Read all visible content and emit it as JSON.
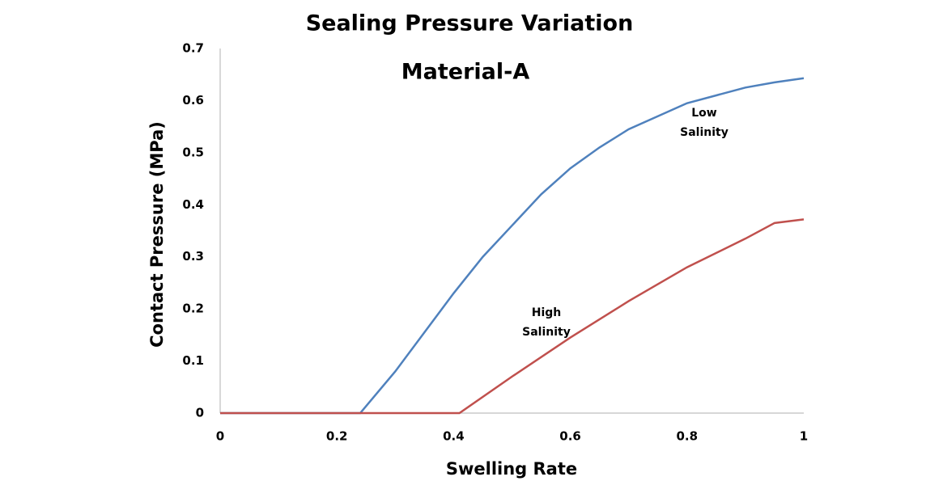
{
  "chart_data": {
    "type": "line",
    "title": "Sealing Pressure Variation",
    "subtitle": "Material-A",
    "x_label": "Swelling Rate",
    "y_label": "Contact Pressure (MPa)",
    "series": [
      {
        "name": "Low Salinity",
        "color": "#4f81bd",
        "x": [
          0,
          0.24,
          0.3,
          0.35,
          0.4,
          0.45,
          0.5,
          0.55,
          0.6,
          0.65,
          0.7,
          0.75,
          0.8,
          0.85,
          0.9,
          0.95,
          1
        ],
        "values": [
          0,
          0,
          0.08,
          0.155,
          0.23,
          0.3,
          0.36,
          0.42,
          0.47,
          0.51,
          0.545,
          0.57,
          0.595,
          0.61,
          0.625,
          0.635,
          0.643
        ]
      },
      {
        "name": "High Salinity",
        "color": "#c0504d",
        "x": [
          0,
          0.41,
          0.5,
          0.6,
          0.7,
          0.8,
          0.9,
          0.95,
          1
        ],
        "values": [
          0,
          0,
          0.07,
          0.145,
          0.215,
          0.28,
          0.335,
          0.365,
          0.372
        ]
      }
    ],
    "annotations": [
      [
        "Low",
        "Salinity"
      ],
      [
        "High",
        "Salinity"
      ]
    ],
    "xlim": [
      0,
      1
    ],
    "xticks": [
      0,
      0.2,
      0.4,
      0.6,
      0.8,
      1
    ],
    "ylim": [
      0,
      0.7
    ],
    "yticks": [
      0,
      0.1,
      0.2,
      0.3,
      0.4,
      0.5,
      0.6,
      0.7
    ],
    "grid": false
  }
}
